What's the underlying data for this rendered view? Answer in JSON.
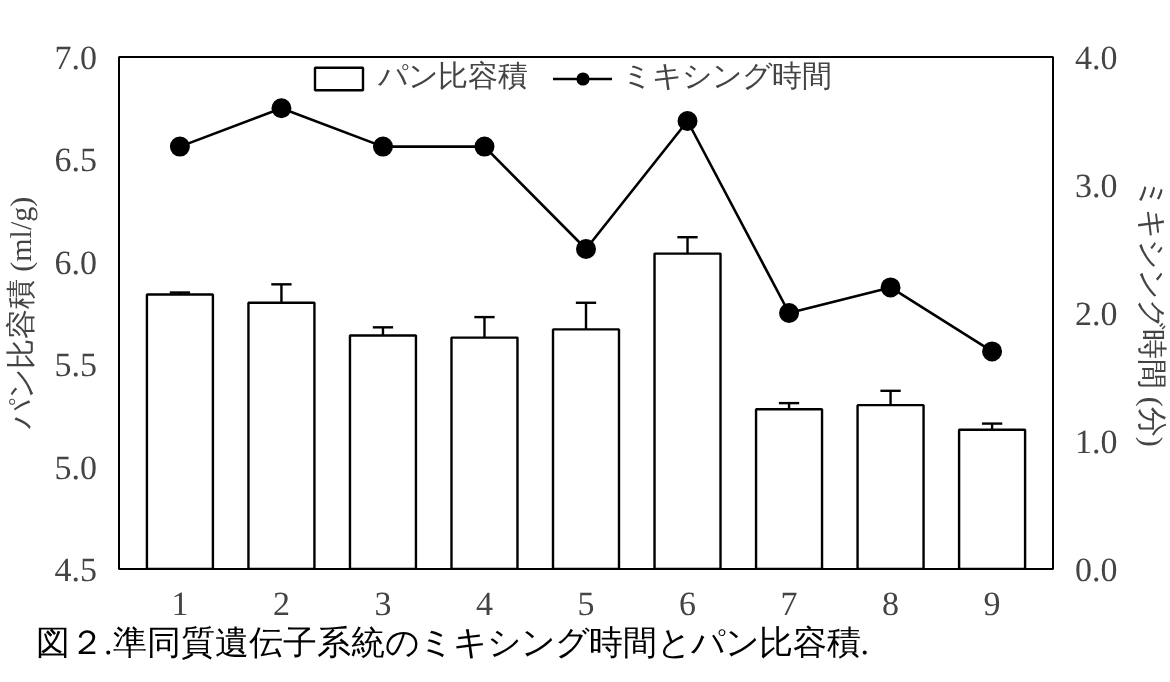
{
  "chart_data": {
    "type": "bar",
    "categories": [
      "1",
      "2",
      "3",
      "4",
      "5",
      "6",
      "7",
      "8",
      "9"
    ],
    "ylabel": "パン比容積 (ml/g)",
    "y2label": "ミキシング時間 (分)",
    "ylim": [
      4.5,
      7.0
    ],
    "yticks": [
      {
        "value": 4.5,
        "label": "4.5"
      },
      {
        "value": 5.0,
        "label": "5.0"
      },
      {
        "value": 5.5,
        "label": "5.5"
      },
      {
        "value": 6.0,
        "label": "6.0"
      },
      {
        "value": 6.5,
        "label": "6.5"
      },
      {
        "value": 7.0,
        "label": "7.0"
      }
    ],
    "y2lim": [
      0.0,
      4.0
    ],
    "y2ticks": [
      {
        "value": 0,
        "label": "0.0"
      },
      {
        "value": 1,
        "label": "1.0"
      },
      {
        "value": 2,
        "label": "2.0"
      },
      {
        "value": 3,
        "label": "3.0"
      },
      {
        "value": 4,
        "label": "4.0"
      }
    ],
    "series": [
      {
        "name": "パン比容積",
        "color": "#ffffff",
        "values": [
          5.84,
          5.8,
          5.64,
          5.63,
          5.67,
          6.04,
          5.28,
          5.3,
          5.18
        ],
        "errors": [
          [
            5.84,
            5.85
          ],
          [
            5.8,
            5.89
          ],
          [
            5.64,
            5.68
          ],
          [
            5.63,
            5.73
          ],
          [
            5.67,
            5.8
          ],
          [
            6.04,
            6.12
          ],
          [
            5.28,
            5.31
          ],
          [
            5.3,
            5.37
          ],
          [
            5.18,
            5.21
          ]
        ]
      },
      {
        "name": "ミキシング時間",
        "type": "line",
        "axis": "y2",
        "color": "#000000",
        "values": [
          3.3,
          3.6,
          3.3,
          3.3,
          2.5,
          3.5,
          2.0,
          2.2,
          1.7
        ]
      }
    ],
    "marker": "circle",
    "line_style": "solid",
    "legend": "top",
    "grid": false,
    "annotations": [
      "図２.準同質遺伝子系統のミキシング時間とパン比容積."
    ]
  }
}
